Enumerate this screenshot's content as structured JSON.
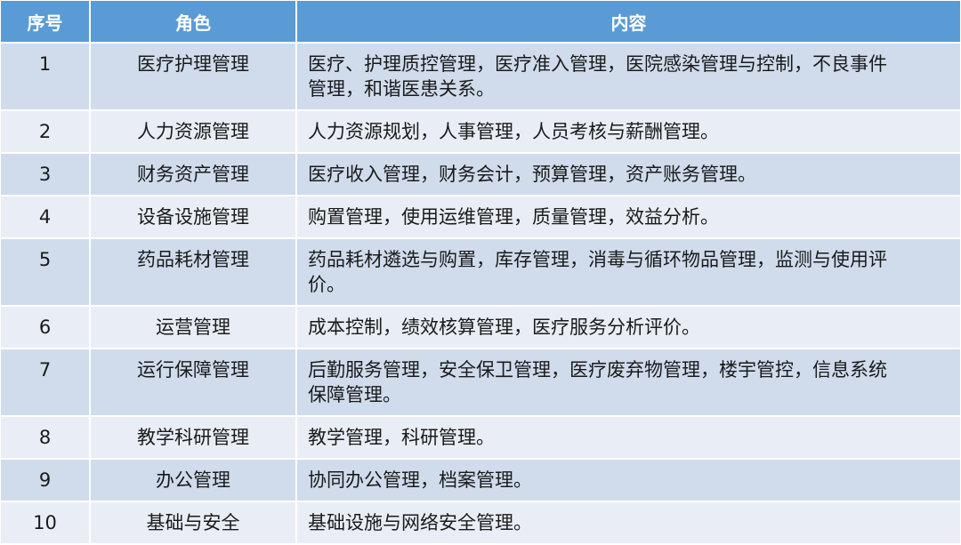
{
  "table": {
    "headers": [
      "序号",
      "角色",
      "内容"
    ],
    "rows": [
      {
        "no": "1",
        "role": "医疗护理管理",
        "content": "医疗、护理质控管理，医疗准入管理，医院感染管理与控制，不良事件管理，和谐医患关系。"
      },
      {
        "no": "2",
        "role": "人力资源管理",
        "content": "人力资源规划，人事管理，人员考核与薪酬管理。"
      },
      {
        "no": "3",
        "role": "财务资产管理",
        "content": "医疗收入管理，财务会计，预算管理，资产账务管理。"
      },
      {
        "no": "4",
        "role": "设备设施管理",
        "content": "购置管理，使用运维管理，质量管理，效益分析。"
      },
      {
        "no": "5",
        "role": "药品耗材管理",
        "content": "药品耗材遴选与购置，库存管理，消毒与循环物品管理，监测与使用评价。"
      },
      {
        "no": "6",
        "role": "运营管理",
        "content": "成本控制，绩效核算管理，医疗服务分析评价。"
      },
      {
        "no": "7",
        "role": "运行保障管理",
        "content": "后勤服务管理，安全保卫管理，医疗废弃物管理，楼宇管控，信息系统保障管理。"
      },
      {
        "no": "8",
        "role": "教学科研管理",
        "content": "教学管理，科研管理。"
      },
      {
        "no": "9",
        "role": "办公管理",
        "content": "协同办公管理，档案管理。"
      },
      {
        "no": "10",
        "role": "基础与安全",
        "content": "基础设施与网络安全管理。"
      }
    ]
  },
  "colors": {
    "header": "#5b9bd5",
    "row_odd": "#d0dcec",
    "row_even": "#e9eef6"
  }
}
